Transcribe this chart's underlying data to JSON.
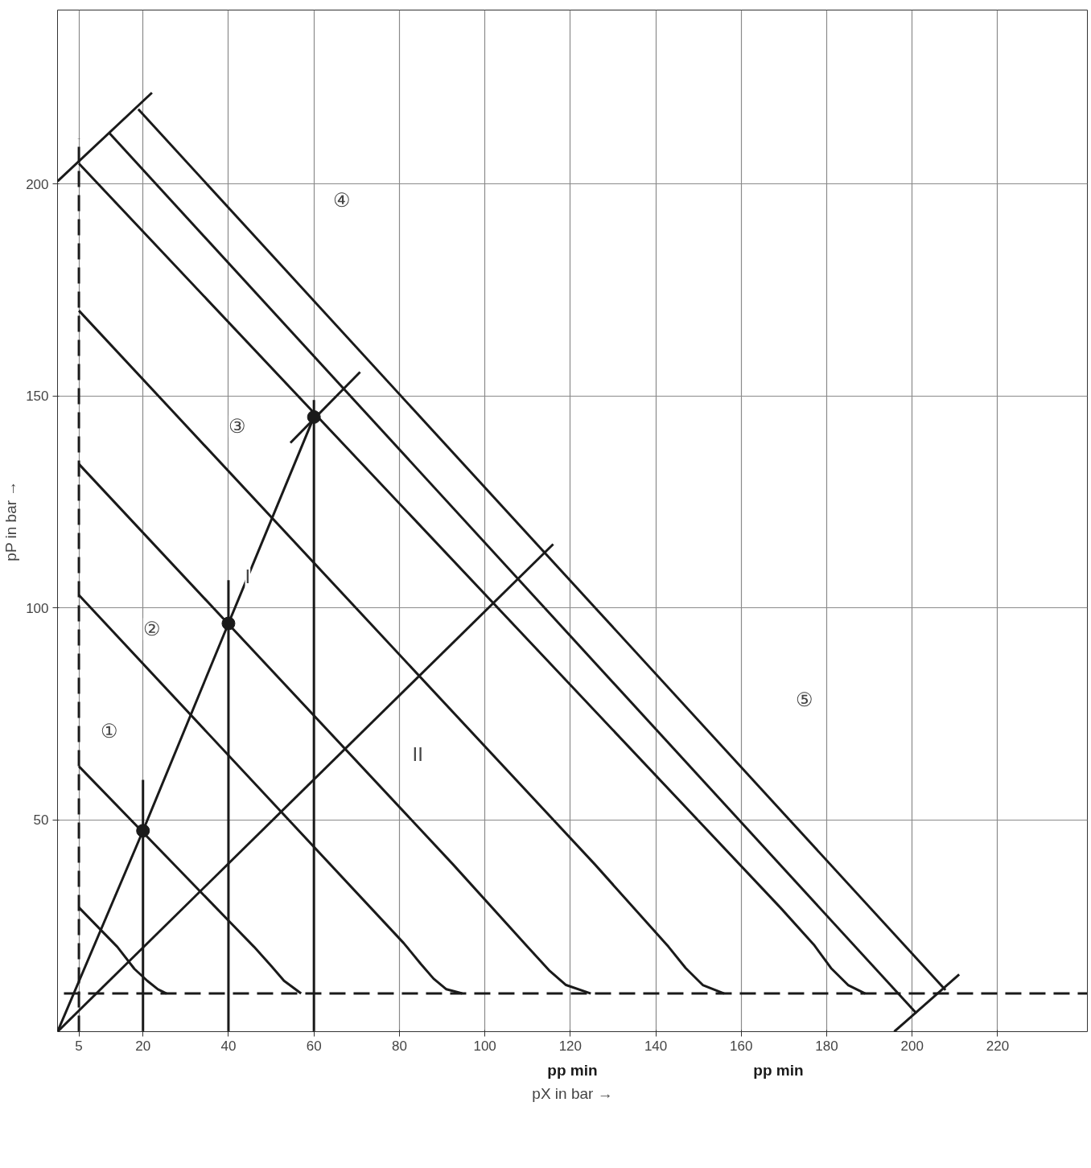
{
  "chart_data": {
    "type": "line",
    "xlabel": "pX in bar →",
    "ylabel": "pP in bar →",
    "xlim": [
      0,
      241
    ],
    "ylim": [
      0,
      241
    ],
    "xticks": [
      5,
      20,
      40,
      60,
      80,
      100,
      120,
      140,
      160,
      180,
      200,
      220
    ],
    "yticks": [
      50,
      100,
      150,
      200
    ],
    "grid": true,
    "marker": "none",
    "line_style": "solid",
    "series": [
      {
        "color": "#1a1a1a",
        "x": [
          5,
          14,
          18,
          21,
          23.5,
          25.5
        ],
        "values": [
          29.3,
          20,
          14.8,
          12,
          10,
          9
        ]
      },
      {
        "color": "#1a1a1a",
        "x": [
          5,
          40.3,
          46,
          50,
          53,
          57
        ],
        "values": [
          62.6,
          25.9,
          20,
          15.5,
          12,
          9
        ]
      },
      {
        "color": "#1a1a1a",
        "x": [
          5,
          81,
          85,
          88,
          91,
          94.7
        ],
        "values": [
          103,
          20.9,
          16,
          12.5,
          10,
          9
        ]
      },
      {
        "color": "#1a1a1a",
        "x": [
          5,
          92.6,
          110,
          115,
          119,
          124.8
        ],
        "values": [
          133.9,
          39.4,
          20,
          14.5,
          11,
          9
        ]
      },
      {
        "color": "#1a1a1a",
        "x": [
          5,
          125.8,
          143,
          147,
          151,
          156
        ],
        "values": [
          170.1,
          39.4,
          20,
          15,
          11,
          9
        ]
      },
      {
        "color": "#1a1a1a",
        "x": [
          5,
          169.3,
          177,
          181,
          185,
          189
        ],
        "values": [
          204.8,
          29.1,
          20.5,
          15,
          11,
          9
        ]
      },
      {
        "color": "#1a1a1a",
        "x": [
          0,
          20,
          40,
          60
        ],
        "values": [
          0,
          47.4,
          96.3,
          145
        ]
      },
      {
        "color": "#1a1a1a",
        "x": [
          0,
          116
        ],
        "values": [
          0,
          115
        ]
      },
      {
        "color": "#1a1a1a",
        "x": [
          20,
          20
        ],
        "values": [
          0,
          59.4
        ]
      },
      {
        "color": "#1a1a1a",
        "x": [
          40,
          40
        ],
        "values": [
          0,
          106.5
        ]
      },
      {
        "color": "#1a1a1a",
        "x": [
          60,
          60
        ],
        "values": [
          0,
          149
        ]
      },
      {
        "color": "#1a1a1a",
        "line_style": "dashed",
        "x": [
          5,
          5
        ],
        "values": [
          0,
          210.7
        ]
      },
      {
        "color": "#1a1a1a",
        "line_style": "dashed",
        "x": [
          1.5,
          241
        ],
        "values": [
          9,
          9
        ]
      },
      {
        "color": "#1a1a1a",
        "x": [
          12.1,
          201
        ],
        "values": [
          212,
          4.3
        ]
      },
      {
        "color": "#1a1a1a",
        "x": [
          18.9,
          207.8
        ],
        "values": [
          217.6,
          9.8
        ]
      },
      {
        "color": "#1a1a1a",
        "x": [
          0,
          22.1
        ],
        "values": [
          200.6,
          221.5
        ]
      },
      {
        "color": "#1a1a1a",
        "x": [
          54.5,
          70.8
        ],
        "values": [
          138.9,
          155.6
        ]
      },
      {
        "color": "#1a1a1a",
        "x": [
          195.8,
          211
        ],
        "values": [
          0,
          13.5
        ]
      },
      {
        "type": "scatter",
        "color": "#1a1a1a",
        "marker": "circle",
        "x": [
          20,
          40,
          60
        ],
        "values": [
          47.4,
          96.3,
          145
        ]
      }
    ],
    "annotations": [
      {
        "text": "①",
        "x": 12.1,
        "y": 70.9
      },
      {
        "text": "②",
        "x": 22.1,
        "y": 95
      },
      {
        "text": "③",
        "x": 42.1,
        "y": 142.8
      },
      {
        "text": "④",
        "x": 66.5,
        "y": 196.3
      },
      {
        "text": "⑤",
        "x": 174.9,
        "y": 78.3
      },
      {
        "text": "I",
        "x": 44.5,
        "y": 107.4
      },
      {
        "text": "II",
        "x": 84.3,
        "y": 65.4
      },
      "pp min",
      "pp min"
    ]
  }
}
